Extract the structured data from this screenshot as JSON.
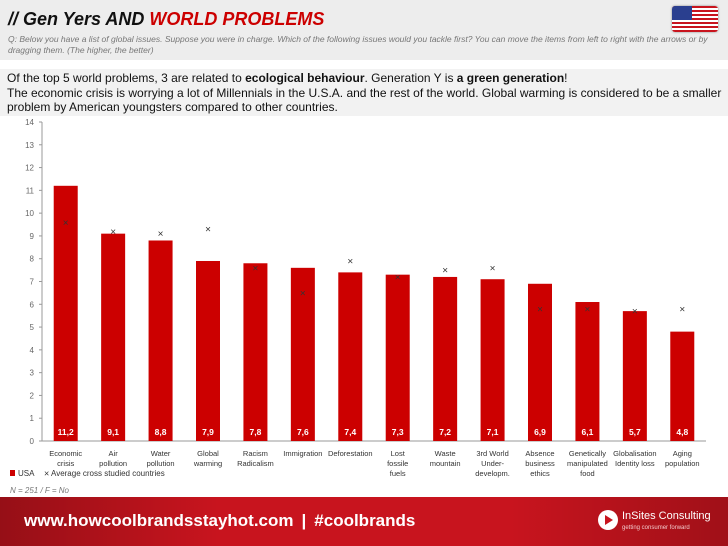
{
  "header": {
    "title_prefix": "// Gen Yers AND ",
    "title_accent": "WORLD PROBLEMS",
    "question": "Q: Below you have a list of global issues. Suppose you were in charge. Which of the following issues would you tackle first? You can move the items from left to right with the arrows or by dragging them. (The higher, the better)"
  },
  "intro": {
    "l1_a": "Of the top 5 world problems, 3 are related to ",
    "l1_b": "ecological behaviour",
    "l1_c": ". Generation Y is ",
    "l1_d": "a green generation",
    "l1_e": "!",
    "l2": "The  economic crisis is worrying a lot of Millennials in the U.S.A. and the rest of the world. Global warming is considered to be a smaller problem by American youngsters compared to other countries."
  },
  "chart_data": {
    "type": "bar",
    "categories": [
      [
        "Economic",
        "crisis"
      ],
      [
        "Air",
        "pollution"
      ],
      [
        "Water",
        "pollution"
      ],
      [
        "Global",
        "warming"
      ],
      [
        "Racism",
        "Radicalism"
      ],
      [
        "Immigration"
      ],
      [
        "Deforestation"
      ],
      [
        "Lost",
        "fossile",
        "fuels"
      ],
      [
        "Waste",
        "mountain"
      ],
      [
        "3rd World",
        "Under-",
        "developm."
      ],
      [
        "Absence",
        "business",
        "ethics"
      ],
      [
        "Genetically",
        "manipulated",
        "food"
      ],
      [
        "Globalisation",
        "Identity loss"
      ],
      [
        "Aging",
        "population"
      ]
    ],
    "series": [
      {
        "name": "USA",
        "type": "bar",
        "values": [
          11.2,
          9.1,
          8.8,
          7.9,
          7.8,
          7.6,
          7.4,
          7.3,
          7.2,
          7.1,
          6.9,
          6.1,
          5.7,
          4.8
        ],
        "labels": [
          "11,2",
          "9,1",
          "8,8",
          "7,9",
          "7,8",
          "7,6",
          "7,4",
          "7,3",
          "7,2",
          "7,1",
          "6,9",
          "6,1",
          "5,7",
          "4,8"
        ]
      },
      {
        "name": "Average cross studied countries",
        "type": "marker",
        "values": [
          9.6,
          9.2,
          9.1,
          9.3,
          7.6,
          6.5,
          7.9,
          7.2,
          7.5,
          7.6,
          5.8,
          5.8,
          5.7,
          5.8
        ]
      }
    ],
    "y_ticks": [
      "0",
      "1",
      "2",
      "3",
      "4",
      "5",
      "6",
      "7",
      "8",
      "9",
      "10",
      "11",
      "12",
      "13",
      "14"
    ],
    "ylim": [
      0,
      14
    ],
    "legend_position": "bottom-left",
    "note": "N = 251 / F = No",
    "colors": {
      "bar": "#cc0000",
      "marker": "#333333",
      "axis": "#999999"
    }
  },
  "footer": {
    "url": "www.howcoolbrandsstayhot.com",
    "sep": "|",
    "hashtag": "#coolbrands",
    "brand": "InSites Consulting",
    "tagline": "getting consumer forward"
  }
}
